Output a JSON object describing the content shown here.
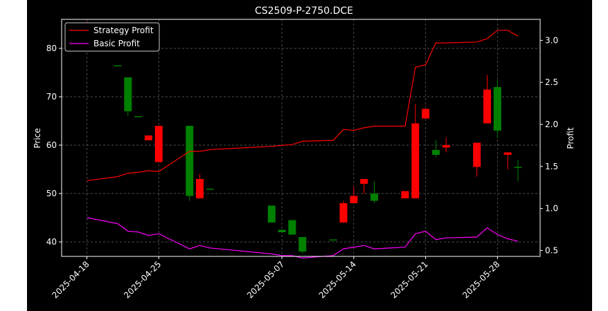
{
  "chart_data": {
    "type": "candlestick",
    "title": "CS2509-P-2750.DCE",
    "ylabel": "Price",
    "y2label": "Profit",
    "ylim": [
      37,
      86
    ],
    "y2lim": [
      0.43,
      3.25
    ],
    "yticks": [
      40,
      50,
      60,
      70,
      80
    ],
    "y2ticks": [
      0.5,
      1.0,
      1.5,
      2.0,
      2.5,
      3.0
    ],
    "y2tick_labels": [
      "0.5",
      "1.0",
      "1.5",
      "2.0",
      "2.5",
      "3.0"
    ],
    "x_dates": [
      "2025-04-18",
      "2025-04-21",
      "2025-04-22",
      "2025-04-23",
      "2025-04-24",
      "2025-04-25",
      "2025-04-28",
      "2025-04-29",
      "2025-04-30",
      "2025-05-06",
      "2025-05-07",
      "2025-05-08",
      "2025-05-09",
      "2025-05-12",
      "2025-05-13",
      "2025-05-14",
      "2025-05-15",
      "2025-05-16",
      "2025-05-19",
      "2025-05-20",
      "2025-05-21",
      "2025-05-22",
      "2025-05-23",
      "2025-05-26",
      "2025-05-27",
      "2025-05-28",
      "2025-05-29",
      "2025-05-30"
    ],
    "xticks": [
      "2025-04-18",
      "2025-04-25",
      "2025-05-07",
      "2025-05-14",
      "2025-05-21",
      "2025-05-28"
    ],
    "xtick_labels": [
      "2025-04-18",
      "2025-04-25",
      "2025-05-07",
      "2025-05-14",
      "2025-05-21",
      "2025-05-28"
    ],
    "candles": [
      {
        "date": "2025-04-18",
        "open": 85.0,
        "high": 85.5,
        "low": 80.5,
        "close": 80.5
      },
      {
        "date": "2025-04-21",
        "open": 76.5,
        "high": 76.5,
        "low": 76.5,
        "close": 76.5
      },
      {
        "date": "2025-04-22",
        "open": 67.0,
        "high": 74.0,
        "low": 66.0,
        "close": 74.0
      },
      {
        "date": "2025-04-23",
        "open": 66.0,
        "high": 66.0,
        "low": 66.0,
        "close": 66.0
      },
      {
        "date": "2025-04-24",
        "open": 62.0,
        "high": 62.0,
        "low": 61.0,
        "close": 61.0
      },
      {
        "date": "2025-04-25",
        "open": 64.0,
        "high": 64.0,
        "low": 56.5,
        "close": 56.5
      },
      {
        "date": "2025-04-28",
        "open": 49.5,
        "high": 64.0,
        "low": 48.5,
        "close": 64.0
      },
      {
        "date": "2025-04-29",
        "open": 53.0,
        "high": 54.0,
        "low": 49.0,
        "close": 49.0
      },
      {
        "date": "2025-04-30",
        "open": 51.0,
        "high": 51.0,
        "low": 51.0,
        "close": 51.0
      },
      {
        "date": "2025-05-06",
        "open": 44.0,
        "high": 47.5,
        "low": 44.0,
        "close": 47.5
      },
      {
        "date": "2025-05-07",
        "open": 42.0,
        "high": 42.5,
        "low": 42.0,
        "close": 42.5
      },
      {
        "date": "2025-05-08",
        "open": 41.5,
        "high": 44.5,
        "low": 41.5,
        "close": 44.5
      },
      {
        "date": "2025-05-09",
        "open": 38.0,
        "high": 41.0,
        "low": 37.5,
        "close": 41.0
      },
      {
        "date": "2025-05-12",
        "open": 40.5,
        "high": 40.5,
        "low": 40.5,
        "close": 40.5
      },
      {
        "date": "2025-05-13",
        "open": 48.0,
        "high": 48.5,
        "low": 44.0,
        "close": 44.0
      },
      {
        "date": "2025-05-14",
        "open": 49.5,
        "high": 51.5,
        "low": 48.0,
        "close": 48.0
      },
      {
        "date": "2025-05-15",
        "open": 53.0,
        "high": 53.0,
        "low": 50.0,
        "close": 52.0
      },
      {
        "date": "2025-05-16",
        "open": 48.5,
        "high": 52.5,
        "low": 48.0,
        "close": 50.0
      },
      {
        "date": "2025-05-19",
        "open": 50.5,
        "high": 50.5,
        "low": 49.0,
        "close": 49.0
      },
      {
        "date": "2025-05-20",
        "open": 64.5,
        "high": 68.5,
        "low": 49.0,
        "close": 49.0
      },
      {
        "date": "2025-05-21",
        "open": 67.5,
        "high": 67.5,
        "low": 65.5,
        "close": 65.5
      },
      {
        "date": "2025-05-22",
        "open": 58.0,
        "high": 61.0,
        "low": 57.5,
        "close": 59.0
      },
      {
        "date": "2025-05-23",
        "open": 60.0,
        "high": 61.5,
        "low": 58.5,
        "close": 59.5
      },
      {
        "date": "2025-05-26",
        "open": 60.5,
        "high": 60.5,
        "low": 53.5,
        "close": 55.5
      },
      {
        "date": "2025-05-27",
        "open": 71.5,
        "high": 74.5,
        "low": 64.5,
        "close": 64.5
      },
      {
        "date": "2025-05-28",
        "open": 63.0,
        "high": 73.5,
        "low": 61.5,
        "close": 72.0
      },
      {
        "date": "2025-05-29",
        "open": 58.5,
        "high": 58.5,
        "low": 55.0,
        "close": 58.0
      },
      {
        "date": "2025-05-30",
        "open": 55.5,
        "high": 57.0,
        "low": 52.5,
        "close": 55.5
      }
    ],
    "series": [
      {
        "name": "Strategy Profit",
        "color": "#ff0000",
        "axis": "right",
        "values": [
          1.33,
          1.38,
          1.42,
          1.43,
          1.45,
          1.44,
          1.68,
          1.68,
          1.7,
          1.74,
          1.75,
          1.76,
          1.8,
          1.81,
          1.94,
          1.93,
          1.96,
          1.98,
          1.98,
          2.68,
          2.71,
          2.97,
          2.97,
          2.98,
          3.02,
          3.12,
          3.12,
          3.05
        ]
      },
      {
        "name": "Basic Profit",
        "color": "#ff00ff",
        "axis": "right",
        "values": [
          0.89,
          0.82,
          0.73,
          0.72,
          0.68,
          0.7,
          0.52,
          0.56,
          0.53,
          0.46,
          0.44,
          0.44,
          0.41,
          0.44,
          0.52,
          0.54,
          0.56,
          0.52,
          0.54,
          0.7,
          0.73,
          0.63,
          0.65,
          0.66,
          0.77,
          0.69,
          0.64,
          0.61
        ]
      }
    ],
    "legend_position": "top-left",
    "grid": true,
    "colors": {
      "background": "#000000",
      "figure": "#ffffff",
      "up": "#008000",
      "down": "#ff0000",
      "axes": "#ffffff",
      "grid": "#b0b0b0"
    }
  }
}
